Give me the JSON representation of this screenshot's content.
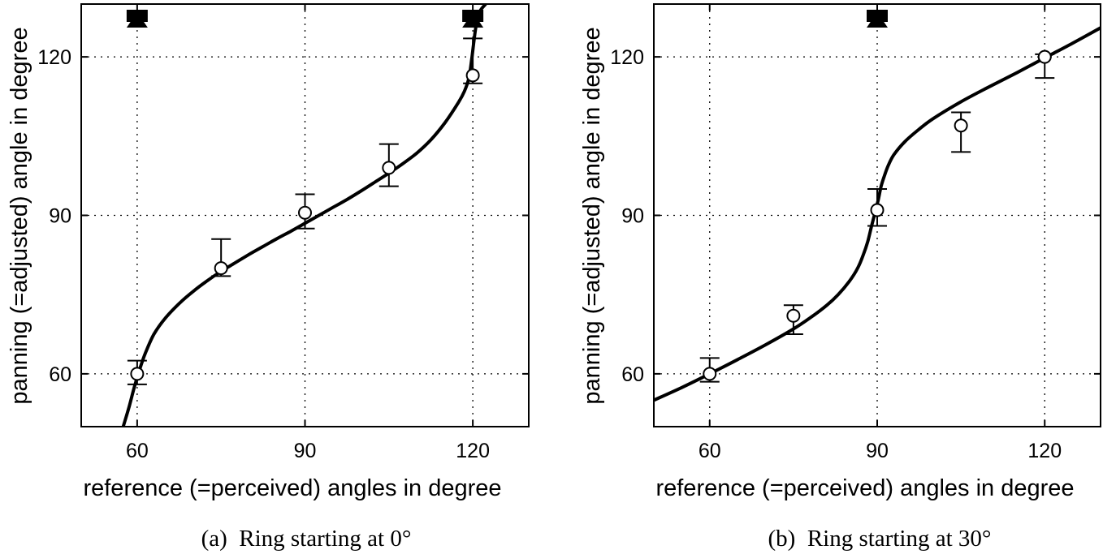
{
  "chart_data": [
    {
      "type": "line",
      "caption": "(a)  Ring starting at 0°",
      "xlabel": "reference (=perceived) angles in degree",
      "ylabel": "panning (=adjusted) angle in degree",
      "xlim": [
        50,
        130
      ],
      "ylim": [
        50,
        130
      ],
      "xticks": [
        60,
        90,
        120
      ],
      "yticks": [
        60,
        90,
        120
      ],
      "grid": true,
      "series": [
        {
          "kind": "measured",
          "x": [
            60,
            75,
            90,
            105,
            120
          ],
          "y": [
            60,
            80,
            90.5,
            99,
            116.5
          ],
          "err_low": [
            58,
            78.5,
            87.5,
            95.5,
            115
          ],
          "err_high": [
            62.5,
            85.5,
            94,
            103.5,
            123.5
          ]
        },
        {
          "kind": "fit",
          "x": [
            57.5,
            58.5,
            59.5,
            60.5,
            61.5,
            63,
            65,
            67.5,
            70,
            72.5,
            75,
            77.5,
            80,
            82.5,
            85,
            87.5,
            90,
            92.5,
            95,
            97.5,
            100,
            102.5,
            105,
            107.5,
            110,
            112.5,
            115,
            117.5,
            118.5,
            119.3,
            119.8,
            120.2,
            120.6,
            121.2,
            122.3
          ],
          "y": [
            50,
            53.5,
            57.5,
            61,
            64,
            67.5,
            70.5,
            73.3,
            75.6,
            77.6,
            79.4,
            81,
            82.6,
            84.1,
            85.6,
            87,
            88.5,
            90,
            91.5,
            93,
            94.6,
            96.3,
            98,
            99.8,
            101.8,
            104.3,
            107.5,
            111.5,
            113.5,
            116,
            119.5,
            123,
            126,
            128.5,
            130
          ]
        }
      ],
      "markers": [
        {
          "shape": "square",
          "x": 60,
          "y": 128
        },
        {
          "shape": "triangle",
          "x": 60,
          "y": 127
        },
        {
          "shape": "square",
          "x": 120,
          "y": 128
        },
        {
          "shape": "triangle",
          "x": 120,
          "y": 127
        }
      ]
    },
    {
      "type": "line",
      "caption": "(b)  Ring starting at 30°",
      "xlabel": "reference (=perceived) angles in degree",
      "ylabel": "panning (=adjusted) angle in degree",
      "xlim": [
        50,
        130
      ],
      "ylim": [
        50,
        130
      ],
      "xticks": [
        60,
        90,
        120
      ],
      "yticks": [
        60,
        90,
        120
      ],
      "grid": true,
      "series": [
        {
          "kind": "measured",
          "x": [
            60,
            75,
            90,
            105,
            120
          ],
          "y": [
            60,
            71,
            91,
            107,
            120
          ],
          "err_low": [
            58.5,
            67.5,
            88,
            102,
            116
          ],
          "err_high": [
            63,
            73,
            95,
            109.5,
            120.5
          ]
        },
        {
          "kind": "fit",
          "x": [
            50,
            55,
            60,
            65,
            70,
            75,
            78,
            81,
            83,
            85,
            86.5,
            87.5,
            88.3,
            89,
            89.6,
            90.2,
            90.7,
            91.3,
            92,
            93,
            95,
            97.5,
            100,
            105,
            110,
            115,
            120,
            125,
            130
          ],
          "y": [
            55,
            57.4,
            60,
            62.7,
            65.5,
            68.5,
            70.6,
            73,
            75,
            77.5,
            80,
            82.5,
            85,
            88,
            90.5,
            93,
            95.5,
            97.5,
            99.5,
            101.5,
            104,
            106.3,
            108.3,
            111.5,
            114.3,
            117,
            119.8,
            122.6,
            125.5
          ]
        }
      ],
      "markers": [
        {
          "shape": "square",
          "x": 90,
          "y": 128
        },
        {
          "shape": "triangle",
          "x": 90,
          "y": 127
        }
      ]
    }
  ]
}
